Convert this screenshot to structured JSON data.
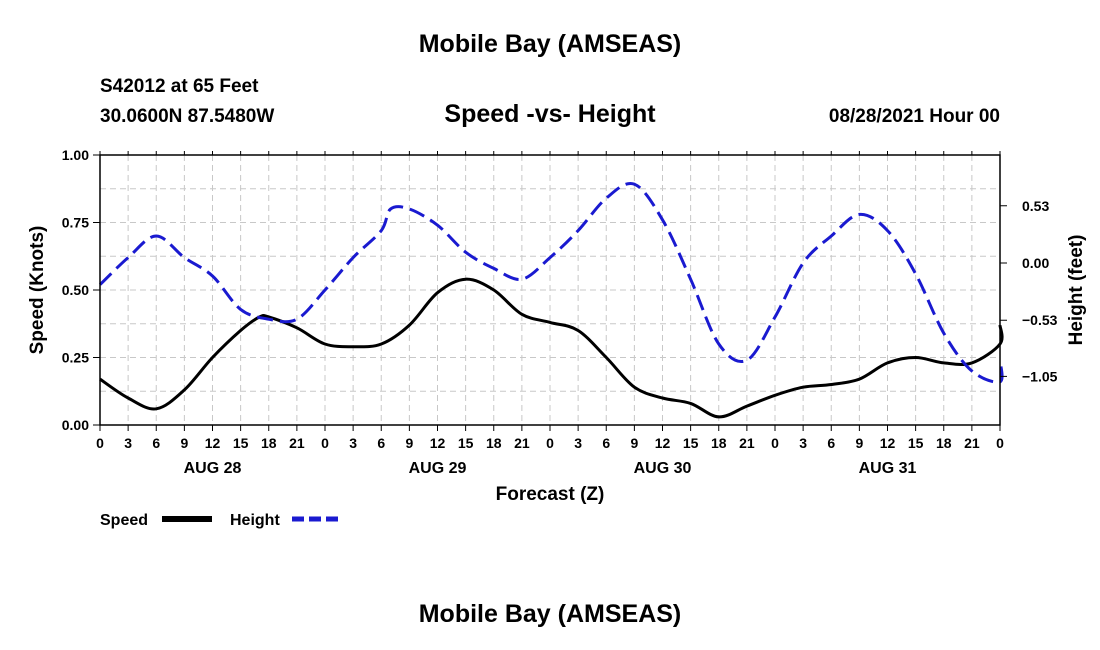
{
  "header": {
    "title": "Mobile Bay (AMSEAS)",
    "station": "S42012 at 65 Feet",
    "coordinates": "30.0600N  87.5480W",
    "chart_title": "Speed -vs- Height",
    "datetime": "08/28/2021 Hour 00"
  },
  "footer": {
    "title": "Mobile Bay (AMSEAS)"
  },
  "colors": {
    "speed": "#000000",
    "height": "#1a1ad0",
    "grid": "#c8c8c8"
  },
  "chart_data": {
    "type": "line",
    "title": "Speed -vs- Height",
    "xlabel": "Forecast (Z)",
    "ylabel": "Speed (Knots)",
    "y2label": "Height (feet)",
    "xlim": [
      0,
      96
    ],
    "ylim": [
      0,
      1
    ],
    "y2lim": [
      -1.5,
      1.0
    ],
    "xticks": [
      0,
      3,
      6,
      9,
      12,
      15,
      18,
      21,
      24,
      27,
      30,
      33,
      36,
      39,
      42,
      45,
      48,
      51,
      54,
      57,
      60,
      63,
      66,
      69,
      72,
      75,
      78,
      81,
      84,
      87,
      90,
      93,
      96
    ],
    "xtick_labels": [
      "0",
      "3",
      "6",
      "9",
      "12",
      "15",
      "18",
      "21",
      "0",
      "3",
      "6",
      "9",
      "12",
      "15",
      "18",
      "21",
      "0",
      "3",
      "6",
      "9",
      "12",
      "15",
      "18",
      "21",
      "0",
      "3",
      "6",
      "9",
      "12",
      "15",
      "18",
      "21",
      "0"
    ],
    "yticks": [
      0,
      0.25,
      0.5,
      0.75,
      1.0
    ],
    "ytick_labels": [
      "0.00",
      "0.25",
      "0.50",
      "0.75",
      "1.00"
    ],
    "y2ticks": [
      0.53,
      0.0,
      -0.53,
      -1.05
    ],
    "y2tick_labels": [
      "0.53",
      "0.00",
      "−0.53",
      "−1.05"
    ],
    "day_labels": [
      {
        "x": 12,
        "label": "AUG 28"
      },
      {
        "x": 36,
        "label": "AUG 29"
      },
      {
        "x": 60,
        "label": "AUG 30"
      },
      {
        "x": 84,
        "label": "AUG 31"
      }
    ],
    "grid": true,
    "legend_placement": "bottom-left",
    "series": [
      {
        "name": "Speed",
        "axis": "left",
        "style": "solid",
        "points": [
          [
            0,
            0.17
          ],
          [
            3,
            0.1
          ],
          [
            6,
            0.06
          ],
          [
            9,
            0.13
          ],
          [
            12,
            0.25
          ],
          [
            15,
            0.35
          ],
          [
            17,
            0.4
          ],
          [
            18,
            0.4
          ],
          [
            21,
            0.36
          ],
          [
            24,
            0.3
          ],
          [
            27,
            0.29
          ],
          [
            30,
            0.3
          ],
          [
            33,
            0.37
          ],
          [
            36,
            0.49
          ],
          [
            39,
            0.54
          ],
          [
            42,
            0.5
          ],
          [
            45,
            0.41
          ],
          [
            48,
            0.38
          ],
          [
            51,
            0.35
          ],
          [
            54,
            0.25
          ],
          [
            57,
            0.14
          ],
          [
            60,
            0.1
          ],
          [
            63,
            0.08
          ],
          [
            66,
            0.03
          ],
          [
            69,
            0.07
          ],
          [
            72,
            0.11
          ],
          [
            75,
            0.14
          ],
          [
            78,
            0.15
          ],
          [
            81,
            0.17
          ],
          [
            84,
            0.23
          ],
          [
            87,
            0.25
          ],
          [
            90,
            0.23
          ],
          [
            93,
            0.23
          ],
          [
            96,
            0.3
          ],
          [
            96,
            0.37
          ]
        ]
      },
      {
        "name": "Height",
        "axis": "right",
        "style": "dashed",
        "points": [
          [
            0,
            -0.2
          ],
          [
            3,
            0.05
          ],
          [
            6,
            0.25
          ],
          [
            9,
            0.05
          ],
          [
            12,
            -0.12
          ],
          [
            15,
            -0.43
          ],
          [
            18,
            -0.52
          ],
          [
            21,
            -0.52
          ],
          [
            24,
            -0.25
          ],
          [
            27,
            0.05
          ],
          [
            30,
            0.3
          ],
          [
            31,
            0.5
          ],
          [
            33,
            0.5
          ],
          [
            36,
            0.35
          ],
          [
            39,
            0.1
          ],
          [
            42,
            -0.05
          ],
          [
            45,
            -0.15
          ],
          [
            48,
            0.05
          ],
          [
            51,
            0.3
          ],
          [
            54,
            0.6
          ],
          [
            57,
            0.73
          ],
          [
            60,
            0.4
          ],
          [
            63,
            -0.15
          ],
          [
            66,
            -0.75
          ],
          [
            69,
            -0.9
          ],
          [
            72,
            -0.5
          ],
          [
            75,
            0.0
          ],
          [
            78,
            0.25
          ],
          [
            81,
            0.45
          ],
          [
            84,
            0.3
          ],
          [
            87,
            -0.1
          ],
          [
            90,
            -0.65
          ],
          [
            93,
            -1.0
          ],
          [
            96,
            -1.1
          ],
          [
            96,
            -0.9
          ]
        ]
      }
    ]
  }
}
